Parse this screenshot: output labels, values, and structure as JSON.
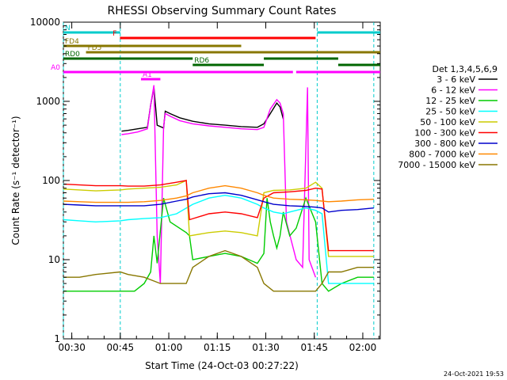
{
  "chart_data": {
    "type": "line",
    "title": "RHESSI Observing Summary Count Rates",
    "xlabel": "Start Time (24-Oct-03 00:27:22)",
    "ylabel": "Count Rate (s⁻¹ detector⁻¹)",
    "y_scale": "log",
    "ylim": [
      1,
      10000
    ],
    "xlim_minutes_after_0027": [
      0,
      98
    ],
    "x_ticks": [
      {
        "label": "00:30",
        "t": 2.6
      },
      {
        "label": "00:45",
        "t": 17.6
      },
      {
        "label": "01:00",
        "t": 32.6
      },
      {
        "label": "01:15",
        "t": 47.6
      },
      {
        "label": "01:30",
        "t": 62.6
      },
      {
        "label": "01:45",
        "t": 77.6
      },
      {
        "label": "02:00",
        "t": 92.6
      }
    ],
    "y_ticks": [
      {
        "label": "1",
        "v": 1
      },
      {
        "label": "10",
        "v": 10
      },
      {
        "label": "100",
        "v": 100
      },
      {
        "label": "1000",
        "v": 1000
      },
      {
        "label": "10000",
        "v": 10000
      }
    ],
    "legend_title": "Det 1,3,4,5,6,9",
    "legend_position": "right",
    "series": [
      {
        "name": "3 - 6 keV",
        "color": "#000000",
        "points": [
          [
            17.6,
            null
          ],
          [
            18,
            420
          ],
          [
            20,
            430
          ],
          [
            23,
            450
          ],
          [
            26,
            470
          ],
          [
            27,
            900
          ],
          [
            28,
            1500
          ],
          [
            29,
            500
          ],
          [
            31,
            460
          ],
          [
            31.5,
            750
          ],
          [
            33,
            700
          ],
          [
            36,
            620
          ],
          [
            40,
            560
          ],
          [
            45,
            520
          ],
          [
            50,
            500
          ],
          [
            55,
            480
          ],
          [
            60,
            470
          ],
          [
            62,
            520
          ],
          [
            64,
            700
          ],
          [
            66,
            950
          ],
          [
            67,
            850
          ],
          [
            68,
            600
          ],
          [
            69,
            null
          ],
          [
            75.5,
            1400
          ],
          [
            76,
            null
          ]
        ]
      },
      {
        "name": "6 - 12 keV",
        "color": "#ff00ff",
        "points": [
          [
            17.6,
            null
          ],
          [
            18,
            380
          ],
          [
            20,
            390
          ],
          [
            23,
            410
          ],
          [
            26,
            450
          ],
          [
            27,
            900
          ],
          [
            28,
            1600
          ],
          [
            29,
            20
          ],
          [
            30,
            5
          ],
          [
            31,
            480
          ],
          [
            31.5,
            700
          ],
          [
            33,
            650
          ],
          [
            36,
            570
          ],
          [
            40,
            520
          ],
          [
            45,
            490
          ],
          [
            50,
            470
          ],
          [
            55,
            450
          ],
          [
            60,
            440
          ],
          [
            62,
            470
          ],
          [
            64,
            800
          ],
          [
            66,
            1050
          ],
          [
            67,
            950
          ],
          [
            68,
            700
          ],
          [
            69,
            30
          ],
          [
            72,
            10
          ],
          [
            74,
            8
          ],
          [
            75.5,
            1500
          ],
          [
            76,
            10
          ],
          [
            78,
            6
          ]
        ]
      },
      {
        "name": "12 - 25 keV",
        "color": "#00cc00",
        "points": [
          [
            0,
            4
          ],
          [
            10,
            4
          ],
          [
            17.6,
            4
          ],
          [
            18,
            4
          ],
          [
            22,
            4
          ],
          [
            25,
            5
          ],
          [
            27,
            7
          ],
          [
            28,
            20
          ],
          [
            29,
            9
          ],
          [
            31,
            60
          ],
          [
            33,
            30
          ],
          [
            38,
            22
          ],
          [
            39,
            20
          ],
          [
            40,
            10
          ],
          [
            45,
            11
          ],
          [
            50,
            12
          ],
          [
            55,
            11
          ],
          [
            60,
            9
          ],
          [
            62,
            12
          ],
          [
            63,
            60
          ],
          [
            64,
            30
          ],
          [
            65,
            20
          ],
          [
            66,
            14
          ],
          [
            67,
            20
          ],
          [
            68,
            40
          ],
          [
            70,
            20
          ],
          [
            72,
            25
          ],
          [
            75,
            60
          ],
          [
            78,
            30
          ],
          [
            80,
            5
          ],
          [
            82,
            4
          ],
          [
            86,
            5
          ],
          [
            91,
            6
          ],
          [
            96,
            6
          ]
        ]
      },
      {
        "name": "25 - 50 keV",
        "color": "#00ffff",
        "points": [
          [
            0,
            32
          ],
          [
            5,
            31
          ],
          [
            10,
            30
          ],
          [
            17.6,
            31
          ],
          [
            20,
            32
          ],
          [
            25,
            33
          ],
          [
            30,
            34
          ],
          [
            35,
            38
          ],
          [
            40,
            50
          ],
          [
            45,
            60
          ],
          [
            50,
            65
          ],
          [
            55,
            60
          ],
          [
            60,
            50
          ],
          [
            62,
            45
          ],
          [
            65,
            40
          ],
          [
            68,
            38
          ],
          [
            70,
            40
          ],
          [
            75,
            45
          ],
          [
            78,
            42
          ],
          [
            80,
            38
          ],
          [
            82,
            5
          ],
          [
            86,
            5
          ],
          [
            91,
            5
          ],
          [
            96,
            5
          ]
        ]
      },
      {
        "name": "50 - 100 keV",
        "color": "#cccc00",
        "points": [
          [
            0,
            78
          ],
          [
            5,
            76
          ],
          [
            10,
            74
          ],
          [
            17.6,
            76
          ],
          [
            20,
            78
          ],
          [
            25,
            80
          ],
          [
            30,
            82
          ],
          [
            35,
            88
          ],
          [
            38,
            100
          ],
          [
            39,
            20
          ],
          [
            45,
            22
          ],
          [
            50,
            23
          ],
          [
            55,
            22
          ],
          [
            60,
            20
          ],
          [
            62,
            70
          ],
          [
            65,
            75
          ],
          [
            70,
            76
          ],
          [
            75,
            80
          ],
          [
            78,
            95
          ],
          [
            80,
            80
          ],
          [
            82,
            11
          ],
          [
            86,
            11
          ],
          [
            91,
            11
          ],
          [
            96,
            11
          ]
        ]
      },
      {
        "name": "100 - 300 keV",
        "color": "#ff0000",
        "points": [
          [
            0,
            90
          ],
          [
            5,
            88
          ],
          [
            10,
            86
          ],
          [
            17.6,
            86
          ],
          [
            20,
            85
          ],
          [
            25,
            85
          ],
          [
            30,
            88
          ],
          [
            35,
            95
          ],
          [
            38,
            100
          ],
          [
            39,
            32
          ],
          [
            45,
            38
          ],
          [
            50,
            40
          ],
          [
            55,
            38
          ],
          [
            60,
            34
          ],
          [
            62,
            60
          ],
          [
            65,
            70
          ],
          [
            70,
            72
          ],
          [
            75,
            75
          ],
          [
            78,
            80
          ],
          [
            80,
            78
          ],
          [
            82,
            13
          ],
          [
            86,
            13
          ],
          [
            91,
            13
          ],
          [
            96,
            13
          ]
        ]
      },
      {
        "name": "300 - 800 keV",
        "color": "#0000cc",
        "points": [
          [
            0,
            50
          ],
          [
            5,
            49
          ],
          [
            10,
            48
          ],
          [
            17.6,
            48
          ],
          [
            20,
            48
          ],
          [
            25,
            48
          ],
          [
            30,
            50
          ],
          [
            35,
            55
          ],
          [
            38,
            58
          ],
          [
            40,
            62
          ],
          [
            45,
            68
          ],
          [
            50,
            70
          ],
          [
            55,
            65
          ],
          [
            60,
            57
          ],
          [
            62,
            54
          ],
          [
            65,
            50
          ],
          [
            70,
            48
          ],
          [
            75,
            47
          ],
          [
            78,
            46
          ],
          [
            80,
            45
          ],
          [
            82,
            40
          ],
          [
            86,
            42
          ],
          [
            91,
            43
          ],
          [
            96,
            45
          ]
        ]
      },
      {
        "name": "800 - 7000 keV",
        "color": "#ff8800",
        "points": [
          [
            0,
            55
          ],
          [
            5,
            54
          ],
          [
            10,
            53
          ],
          [
            17.6,
            53
          ],
          [
            20,
            53
          ],
          [
            25,
            54
          ],
          [
            30,
            56
          ],
          [
            35,
            60
          ],
          [
            38,
            64
          ],
          [
            40,
            70
          ],
          [
            45,
            80
          ],
          [
            50,
            86
          ],
          [
            55,
            80
          ],
          [
            60,
            70
          ],
          [
            62,
            65
          ],
          [
            65,
            60
          ],
          [
            70,
            58
          ],
          [
            75,
            57
          ],
          [
            78,
            56
          ],
          [
            80,
            55
          ],
          [
            82,
            54
          ],
          [
            86,
            55
          ],
          [
            91,
            57
          ],
          [
            96,
            58
          ]
        ]
      },
      {
        "name": "7000 - 15000 keV",
        "color": "#887700",
        "points": [
          [
            0,
            6
          ],
          [
            5,
            6
          ],
          [
            10,
            6.5
          ],
          [
            17.6,
            7
          ],
          [
            20,
            6.5
          ],
          [
            25,
            6
          ],
          [
            30,
            5
          ],
          [
            35,
            5
          ],
          [
            38,
            5
          ],
          [
            40,
            8
          ],
          [
            45,
            11
          ],
          [
            50,
            13
          ],
          [
            55,
            11
          ],
          [
            60,
            8
          ],
          [
            62,
            5
          ],
          [
            65,
            4
          ],
          [
            70,
            4
          ],
          [
            75,
            4
          ],
          [
            78,
            4
          ],
          [
            80,
            5
          ],
          [
            82,
            7
          ],
          [
            86,
            7
          ],
          [
            91,
            8
          ],
          [
            96,
            8
          ]
        ]
      }
    ],
    "status_bars": [
      {
        "label": "N",
        "color": "#00cccc",
        "segments": [
          [
            0,
            17.6
          ],
          [
            78.5,
            98
          ]
        ]
      },
      {
        "label": "F",
        "color": "#ff0000",
        "segments": [
          [
            17.5,
            78
          ]
        ]
      },
      {
        "label": "FD4",
        "color": "#887700",
        "segments": [
          [
            0,
            55
          ]
        ]
      },
      {
        "label": "FD5",
        "color": "#887700",
        "segments": [
          [
            7,
            98
          ]
        ]
      },
      {
        "label": "RD0",
        "color": "#006600",
        "segments": [
          [
            0,
            40
          ],
          [
            62,
            85
          ]
        ]
      },
      {
        "label": "RD6",
        "color": "#006600",
        "segments": [
          [
            40,
            62
          ],
          [
            85,
            98
          ]
        ]
      },
      {
        "label": "A0",
        "color": "#ff00ff",
        "segments": [
          [
            0,
            71
          ],
          [
            72,
            98
          ]
        ]
      },
      {
        "label": "A1",
        "color": "#ff00ff",
        "segments": [
          [
            24,
            30
          ]
        ]
      }
    ],
    "vertical_markers": [
      {
        "t": 0,
        "color": "#00cccc"
      },
      {
        "t": 17.6,
        "color": "#00cccc"
      },
      {
        "t": 78.5,
        "color": "#00cccc"
      },
      {
        "t": 96,
        "color": "#00cccc"
      }
    ]
  },
  "footer": {
    "timestamp": "24-Oct-2021 19:53"
  }
}
